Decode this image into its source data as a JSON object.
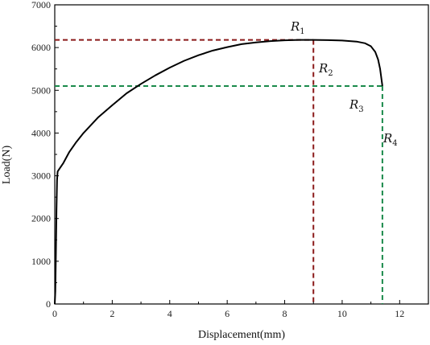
{
  "chart_data": {
    "type": "line",
    "title": "",
    "xlabel": "Displacement(mm)",
    "ylabel": "Load(N)",
    "xlim": [
      0,
      13
    ],
    "ylim": [
      0,
      7000
    ],
    "xticks": [
      0,
      2,
      4,
      6,
      8,
      10,
      12
    ],
    "yticks": [
      0,
      1000,
      2000,
      3000,
      4000,
      5000,
      6000,
      7000
    ],
    "grid": false,
    "series": [
      {
        "color": "#000000",
        "x": [
          0.0,
          0.02,
          0.04,
          0.06,
          0.08,
          0.1,
          0.15,
          0.2,
          0.3,
          0.5,
          0.75,
          1.0,
          1.5,
          2.0,
          2.5,
          3.0,
          3.5,
          4.0,
          4.5,
          5.0,
          5.5,
          6.0,
          6.5,
          7.0,
          7.5,
          8.0,
          8.5,
          9.0,
          9.5,
          10.0,
          10.5,
          10.8,
          11.0,
          11.15,
          11.25,
          11.32,
          11.37,
          11.4
        ],
        "y": [
          0,
          300,
          1200,
          2200,
          2900,
          3100,
          3150,
          3200,
          3300,
          3550,
          3790,
          4000,
          4360,
          4650,
          4930,
          5150,
          5350,
          5530,
          5690,
          5820,
          5930,
          6010,
          6080,
          6120,
          6150,
          6170,
          6180,
          6180,
          6175,
          6165,
          6140,
          6100,
          6030,
          5900,
          5720,
          5500,
          5250,
          5100
        ]
      }
    ],
    "reference_lines": [
      {
        "color": "#8b1a1a",
        "x": 9.0,
        "y": 6180
      },
      {
        "color": "#1a8a4a",
        "x": 11.4,
        "y": 5100
      }
    ],
    "annotations": [
      {
        "base": "R",
        "sub": "1"
      },
      {
        "base": "R",
        "sub": "2"
      },
      {
        "base": "R",
        "sub": "3"
      },
      {
        "base": "R",
        "sub": "4"
      }
    ]
  }
}
